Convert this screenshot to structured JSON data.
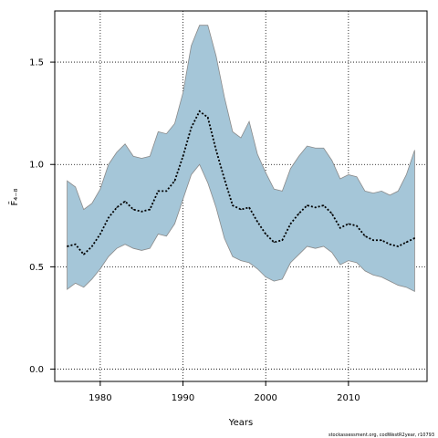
{
  "chart_data": {
    "type": "area",
    "xlabel": "Years",
    "ylabel": "F̄₄₋₈",
    "xlim": [
      1974.5,
      2019.5
    ],
    "ylim": [
      -0.06,
      1.75
    ],
    "x_ticks": [
      "1980",
      "1990",
      "2000",
      "2010"
    ],
    "y_ticks": [
      "0.0",
      "0.5",
      "1.0",
      "1.5"
    ],
    "grid": true,
    "colors": {
      "band_fill": "#a5c6d8",
      "band_stroke": "#8a8a8a",
      "line": "#000000"
    },
    "x": [
      1976,
      1977,
      1978,
      1979,
      1980,
      1981,
      1982,
      1983,
      1984,
      1985,
      1986,
      1987,
      1988,
      1989,
      1990,
      1991,
      1992,
      1993,
      1994,
      1995,
      1996,
      1997,
      1998,
      1999,
      2000,
      2001,
      2002,
      2003,
      2004,
      2005,
      2006,
      2007,
      2008,
      2009,
      2010,
      2011,
      2012,
      2013,
      2014,
      2015,
      2016,
      2017,
      2018
    ],
    "series": [
      {
        "role": "estimate",
        "values": [
          0.6,
          0.61,
          0.56,
          0.6,
          0.66,
          0.74,
          0.79,
          0.82,
          0.78,
          0.77,
          0.78,
          0.87,
          0.87,
          0.92,
          1.04,
          1.18,
          1.26,
          1.23,
          1.07,
          0.93,
          0.8,
          0.78,
          0.79,
          0.72,
          0.66,
          0.62,
          0.63,
          0.71,
          0.76,
          0.8,
          0.79,
          0.8,
          0.76,
          0.69,
          0.71,
          0.7,
          0.65,
          0.63,
          0.63,
          0.61,
          0.6,
          0.62,
          0.64
        ]
      },
      {
        "role": "upper",
        "values": [
          0.92,
          0.89,
          0.78,
          0.81,
          0.88,
          1.0,
          1.06,
          1.1,
          1.04,
          1.03,
          1.04,
          1.16,
          1.15,
          1.2,
          1.35,
          1.58,
          1.68,
          1.68,
          1.53,
          1.33,
          1.16,
          1.13,
          1.21,
          1.05,
          0.96,
          0.88,
          0.87,
          0.98,
          1.04,
          1.09,
          1.08,
          1.08,
          1.02,
          0.93,
          0.95,
          0.94,
          0.87,
          0.86,
          0.87,
          0.85,
          0.87,
          0.95,
          1.07
        ]
      },
      {
        "role": "lower",
        "values": [
          0.39,
          0.42,
          0.4,
          0.44,
          0.49,
          0.55,
          0.59,
          0.61,
          0.59,
          0.58,
          0.59,
          0.66,
          0.65,
          0.71,
          0.83,
          0.95,
          1.0,
          0.91,
          0.79,
          0.64,
          0.55,
          0.53,
          0.52,
          0.49,
          0.45,
          0.43,
          0.44,
          0.52,
          0.56,
          0.6,
          0.59,
          0.6,
          0.57,
          0.51,
          0.53,
          0.52,
          0.48,
          0.46,
          0.45,
          0.43,
          0.41,
          0.4,
          0.38
        ]
      }
    ]
  },
  "footer": {
    "credit": "stockassessment.org, codWestR2year, r10793"
  }
}
